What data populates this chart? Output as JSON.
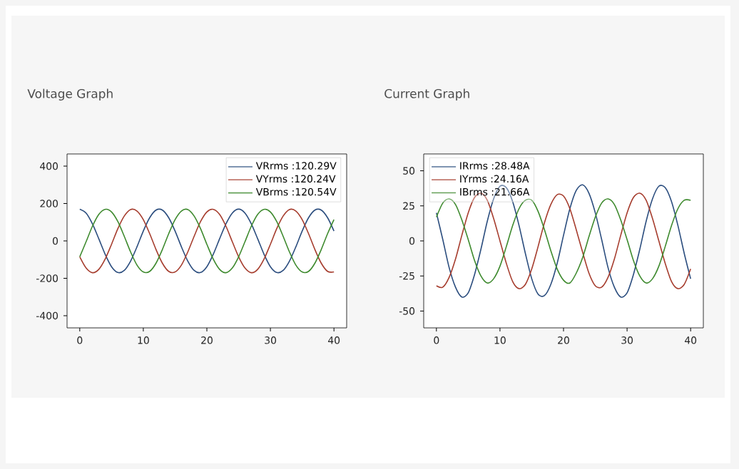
{
  "chart_data": [
    {
      "type": "line",
      "title": "Voltage Graph",
      "x": [
        0,
        1,
        2,
        3,
        4,
        5,
        6,
        7,
        8,
        9,
        10,
        11,
        12,
        13,
        14,
        15,
        16,
        17,
        18,
        19,
        20,
        21,
        22,
        23,
        24,
        25,
        26,
        27,
        28,
        29,
        30,
        31,
        32,
        33,
        34,
        35,
        36,
        37,
        38,
        39,
        40
      ],
      "series": [
        {
          "name": "VRrms :120.29V",
          "color": "#2b4d7e",
          "values": [
            170,
            149,
            91,
            11,
            -72,
            -138,
            -169,
            -158,
            -108,
            -32,
            53,
            124,
            165,
            165,
            124,
            53,
            -32,
            -108,
            -158,
            -169,
            -138,
            -72,
            11,
            91,
            149,
            170,
            149,
            91,
            11,
            -72,
            -138,
            -169,
            -158,
            -108,
            -32,
            53,
            124,
            165,
            165,
            124,
            53
          ]
        },
        {
          "name": "VYrms :120.24V",
          "color": "#a63d2e",
          "values": [
            -85,
            -145,
            -170,
            -152,
            -97,
            -18,
            66,
            133,
            168,
            160,
            114,
            39,
            -46,
            -119,
            -163,
            -166,
            -129,
            -59,
            25,
            103,
            155,
            169,
            142,
            79,
            -4,
            -85,
            -145,
            -170,
            -152,
            -97,
            -18,
            66,
            133,
            168,
            160,
            114,
            39,
            -46,
            -119,
            -163,
            -166
          ]
        },
        {
          "name": "VBrms :120.54V",
          "color": "#3e8a2e",
          "values": [
            -85,
            -4,
            79,
            142,
            169,
            155,
            103,
            25,
            -59,
            -129,
            -166,
            -163,
            -119,
            -46,
            39,
            114,
            160,
            168,
            133,
            66,
            -18,
            -97,
            -152,
            -170,
            -145,
            -85,
            -4,
            79,
            142,
            169,
            155,
            103,
            25,
            -59,
            -129,
            -166,
            -163,
            -119,
            -46,
            39,
            114
          ]
        }
      ],
      "xlim": [
        -2,
        42
      ],
      "xticks": [
        0,
        10,
        20,
        30,
        40
      ],
      "ylim": [
        -465,
        465
      ],
      "yticks": [
        -400,
        -200,
        0,
        200,
        400
      ],
      "grid": false,
      "legend": "top right"
    },
    {
      "type": "line",
      "title": "Current Graph",
      "x": [
        0,
        1,
        2,
        3,
        4,
        5,
        6,
        7,
        8,
        9,
        10,
        11,
        12,
        13,
        14,
        15,
        16,
        17,
        18,
        19,
        20,
        21,
        22,
        23,
        24,
        25,
        26,
        27,
        28,
        29,
        30,
        31,
        32,
        33,
        34,
        35,
        36,
        37,
        38,
        39,
        40
      ],
      "series": [
        {
          "name": "IRrms :28.48A",
          "color": "#2b4d7e",
          "values": [
            20,
            1,
            -19,
            -33,
            -40,
            -37,
            -24,
            -6,
            14,
            30,
            39,
            38,
            28,
            11,
            -9,
            -27,
            -38,
            -39,
            -31,
            -16,
            4,
            23,
            36,
            40,
            34,
            20,
            1,
            -19,
            -33,
            -40,
            -37,
            -24,
            -6,
            14,
            30,
            39,
            38,
            28,
            11,
            -9,
            -27
          ]
        },
        {
          "name": "IYrms :24.16A",
          "color": "#a63d2e",
          "values": [
            -32,
            -33,
            -26,
            -13,
            4,
            20,
            31,
            34,
            29,
            16,
            0,
            -16,
            -29,
            -34,
            -31,
            -20,
            -4,
            13,
            26,
            33,
            32,
            23,
            8,
            -8,
            -23,
            -32,
            -33,
            -26,
            -13,
            4,
            20,
            31,
            34,
            29,
            16,
            0,
            -16,
            -29,
            -34,
            -31,
            -20
          ]
        },
        {
          "name": "IBrms :21.66A",
          "color": "#3e8a2e",
          "values": [
            17,
            27,
            30,
            26,
            15,
            1,
            -14,
            -25,
            -30,
            -27,
            -18,
            -4,
            11,
            23,
            29,
            29,
            21,
            8,
            -7,
            -20,
            -28,
            -30,
            -23,
            -12,
            3,
            17,
            27,
            30,
            26,
            15,
            1,
            -14,
            -25,
            -30,
            -27,
            -18,
            -4,
            11,
            23,
            29,
            29
          ]
        }
      ],
      "xlim": [
        -2,
        42
      ],
      "xticks": [
        0,
        10,
        20,
        30,
        40
      ],
      "ylim": [
        -62,
        62
      ],
      "yticks": [
        -50,
        -25,
        0,
        25,
        50
      ],
      "grid": false,
      "legend": "top left"
    }
  ]
}
